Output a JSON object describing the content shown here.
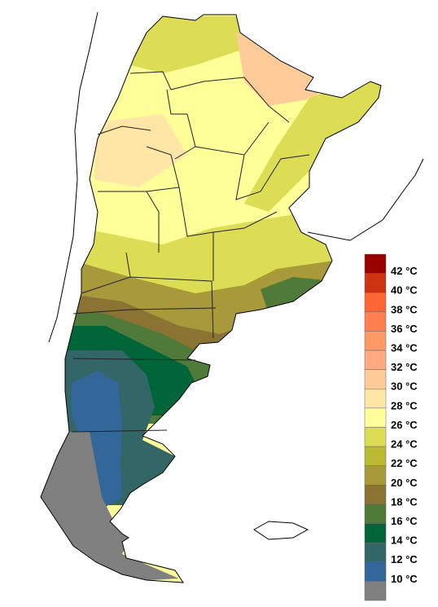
{
  "legend": {
    "colors": [
      "#990000",
      "#cc3311",
      "#ff6633",
      "#ff7f4f",
      "#ff9966",
      "#ffaa80",
      "#ffcc99",
      "#ffe6a6",
      "#ffff99",
      "#dddd55",
      "#bbbb33",
      "#a89a3a",
      "#8b7333",
      "#4f7a3a",
      "#00663a",
      "#336666",
      "#336699",
      "#808080"
    ],
    "labels": [
      "42 °C",
      "40 °C",
      "38 °C",
      "36 °C",
      "34 °C",
      "32 °C",
      "30 °C",
      "28 °C",
      "26 °C",
      "24 °C",
      "22 °C",
      "20 °C",
      "18 °C",
      "16 °C",
      "14 °C",
      "12 °C",
      "10 °C"
    ]
  }
}
